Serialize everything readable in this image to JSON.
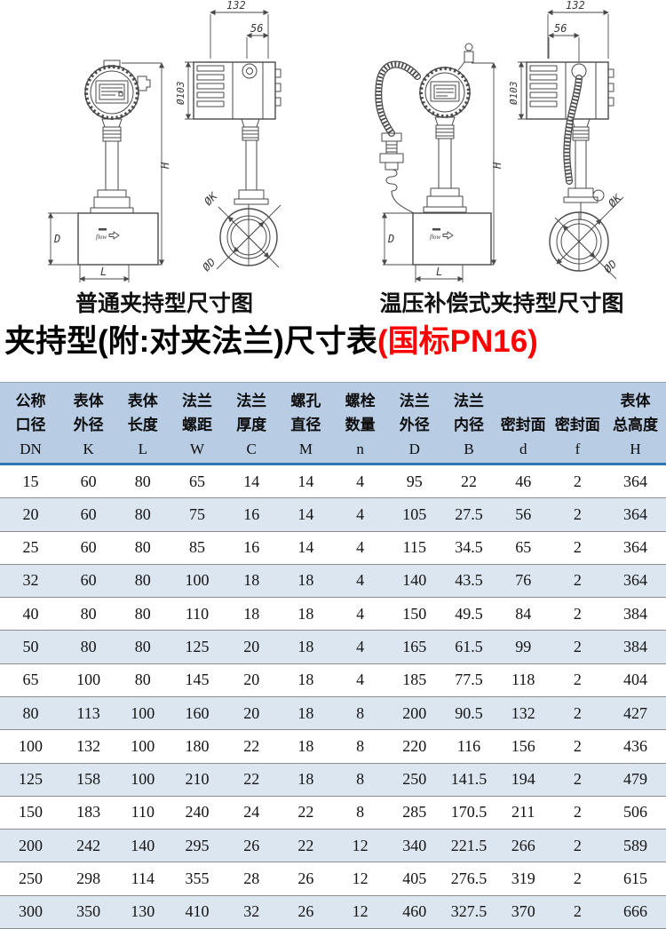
{
  "diagrams": {
    "left": {
      "caption": "普通夹持型尺寸图",
      "labels": {
        "top_width": "132",
        "top_width_inner": "56",
        "head_dia": "Ø103",
        "height": "H",
        "bolt_circle": "ØK",
        "inner_dia": "ØD",
        "body_height": "D",
        "body_length": "L",
        "flow": "flow"
      }
    },
    "right": {
      "caption": "温压补偿式夹持型尺寸图",
      "labels": {
        "top_width": "132",
        "top_width_inner": "56",
        "head_dia": "Ø103",
        "height": "H",
        "bolt_circle": "ØK",
        "inner_dia": "ØD",
        "body_height": "D",
        "body_length": "L",
        "flow": "flow"
      }
    }
  },
  "title": {
    "main": "夹持型(附:对夹法兰)尺寸表",
    "highlight": "(国标PN16)"
  },
  "table": {
    "columns": [
      {
        "zh1": "公称",
        "zh2": "口径",
        "sym": "DN"
      },
      {
        "zh1": "表体",
        "zh2": "外径",
        "sym": "K"
      },
      {
        "zh1": "表体",
        "zh2": "长度",
        "sym": "L"
      },
      {
        "zh1": "法兰",
        "zh2": "螺距",
        "sym": "W"
      },
      {
        "zh1": "法兰",
        "zh2": "厚度",
        "sym": "C"
      },
      {
        "zh1": "螺孔",
        "zh2": "直径",
        "sym": "M"
      },
      {
        "zh1": "螺栓",
        "zh2": "数量",
        "sym": "n"
      },
      {
        "zh1": "法兰",
        "zh2": "外径",
        "sym": "D"
      },
      {
        "zh1": "法兰",
        "zh2": "内径",
        "sym": "B"
      },
      {
        "zh1": "",
        "zh2": "密封面",
        "sym": "d"
      },
      {
        "zh1": "",
        "zh2": "密封面",
        "sym": "f"
      },
      {
        "zh1": "表体",
        "zh2": "总高度",
        "sym": "H"
      }
    ],
    "rows": [
      [
        "15",
        "60",
        "80",
        "65",
        "14",
        "14",
        "4",
        "95",
        "22",
        "46",
        "2",
        "364"
      ],
      [
        "20",
        "60",
        "80",
        "75",
        "16",
        "14",
        "4",
        "105",
        "27.5",
        "56",
        "2",
        "364"
      ],
      [
        "25",
        "60",
        "80",
        "85",
        "16",
        "14",
        "4",
        "115",
        "34.5",
        "65",
        "2",
        "364"
      ],
      [
        "32",
        "60",
        "80",
        "100",
        "18",
        "18",
        "4",
        "140",
        "43.5",
        "76",
        "2",
        "364"
      ],
      [
        "40",
        "80",
        "80",
        "110",
        "18",
        "18",
        "4",
        "150",
        "49.5",
        "84",
        "2",
        "384"
      ],
      [
        "50",
        "80",
        "80",
        "125",
        "20",
        "18",
        "4",
        "165",
        "61.5",
        "99",
        "2",
        "384"
      ],
      [
        "65",
        "100",
        "80",
        "145",
        "20",
        "18",
        "4",
        "185",
        "77.5",
        "118",
        "2",
        "404"
      ],
      [
        "80",
        "113",
        "100",
        "160",
        "20",
        "18",
        "8",
        "200",
        "90.5",
        "132",
        "2",
        "427"
      ],
      [
        "100",
        "132",
        "100",
        "180",
        "22",
        "18",
        "8",
        "220",
        "116",
        "156",
        "2",
        "436"
      ],
      [
        "125",
        "158",
        "100",
        "210",
        "22",
        "18",
        "8",
        "250",
        "141.5",
        "194",
        "2",
        "479"
      ],
      [
        "150",
        "183",
        "110",
        "240",
        "24",
        "22",
        "8",
        "285",
        "170.5",
        "211",
        "2",
        "506"
      ],
      [
        "200",
        "242",
        "140",
        "295",
        "26",
        "22",
        "12",
        "340",
        "221.5",
        "266",
        "2",
        "589"
      ],
      [
        "250",
        "298",
        "114",
        "355",
        "28",
        "26",
        "12",
        "405",
        "276.5",
        "319",
        "2",
        "615"
      ],
      [
        "300",
        "350",
        "130",
        "410",
        "32",
        "26",
        "12",
        "460",
        "327.5",
        "370",
        "2",
        "666"
      ]
    ],
    "colors": {
      "header_bg": "#b8cce4",
      "alt_row_bg": "#dce6f1",
      "header_rule": "#2e75b6",
      "title_highlight": "#ff0000"
    }
  }
}
